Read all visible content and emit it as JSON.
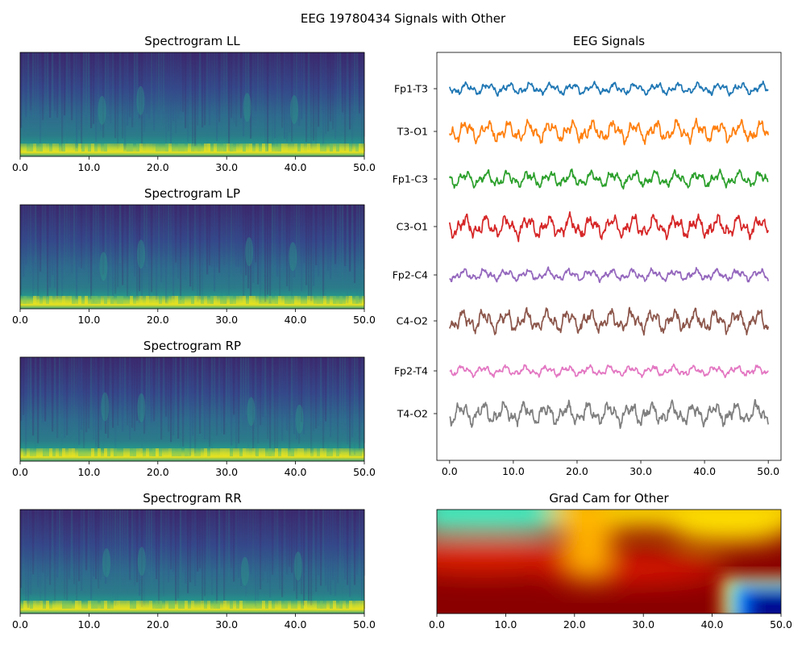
{
  "figure": {
    "title": "EEG 19780434 Signals with Other"
  },
  "chart_data": [
    {
      "type": "heatmap",
      "title": "Spectrogram LL",
      "colormap": "viridis",
      "xlim": [
        0,
        50
      ],
      "x_ticks": [
        "0.0",
        "10.0",
        "20.0",
        "30.0",
        "40.0",
        "50.0"
      ],
      "y_ticks": [],
      "low_frequency_band": "bright yellow band along the bottom edge"
    },
    {
      "type": "heatmap",
      "title": "Spectrogram LP",
      "colormap": "viridis",
      "xlim": [
        0,
        50
      ],
      "x_ticks": [
        "0.0",
        "10.0",
        "20.0",
        "30.0",
        "40.0",
        "50.0"
      ],
      "y_ticks": [],
      "low_frequency_band": "bright yellow band along the bottom edge"
    },
    {
      "type": "heatmap",
      "title": "Spectrogram RP",
      "colormap": "viridis",
      "xlim": [
        0,
        50
      ],
      "x_ticks": [
        "0.0",
        "10.0",
        "20.0",
        "30.0",
        "40.0",
        "50.0"
      ],
      "y_ticks": [],
      "low_frequency_band": "bright yellow band along the bottom edge"
    },
    {
      "type": "heatmap",
      "title": "Spectrogram RR",
      "colormap": "viridis",
      "xlim": [
        0,
        50
      ],
      "x_ticks": [
        "0.0",
        "10.0",
        "20.0",
        "30.0",
        "40.0",
        "50.0"
      ],
      "y_ticks": [],
      "low_frequency_band": "bright yellow band along the bottom edge"
    },
    {
      "type": "line",
      "title": "EEG Signals",
      "xlim": [
        -2,
        52
      ],
      "x_ticks": [
        "0.0",
        "10.0",
        "20.0",
        "30.0",
        "40.0",
        "50.0"
      ],
      "grid": false,
      "series": [
        {
          "name": "Fp1-T3",
          "color": "#1f77b4",
          "amplitude": 0.55
        },
        {
          "name": "T3-O1",
          "color": "#ff7f0e",
          "amplitude": 1.0
        },
        {
          "name": "Fp1-C3",
          "color": "#2ca02c",
          "amplitude": 0.75
        },
        {
          "name": "C3-O1",
          "color": "#d62728",
          "amplitude": 1.05
        },
        {
          "name": "Fp2-C4",
          "color": "#9467bd",
          "amplitude": 0.55
        },
        {
          "name": "C4-O2",
          "color": "#8c564b",
          "amplitude": 1.05
        },
        {
          "name": "Fp2-T4",
          "color": "#e377c2",
          "amplitude": 0.5
        },
        {
          "name": "T4-O2",
          "color": "#7f7f7f",
          "amplitude": 1.05
        }
      ]
    },
    {
      "type": "heatmap",
      "title": "Grad Cam for Other",
      "colormap": "jet",
      "xlim": [
        0,
        50
      ],
      "x_ticks": [
        "0.0",
        "10.0",
        "20.0",
        "30.0",
        "40.0",
        "50.0"
      ],
      "y_ticks": [],
      "regions": [
        {
          "description": "cyan (low) region across the upper left",
          "x_range": [
            0,
            17
          ]
        },
        {
          "description": "yellow band across the top from mid to right",
          "x_range": [
            17,
            50
          ]
        },
        {
          "description": "dark red (high) area across the lower half",
          "x_range": [
            0,
            42
          ]
        },
        {
          "description": "blue / dark blue patch in the lower right corner",
          "x_range": [
            42,
            50
          ]
        }
      ]
    }
  ]
}
